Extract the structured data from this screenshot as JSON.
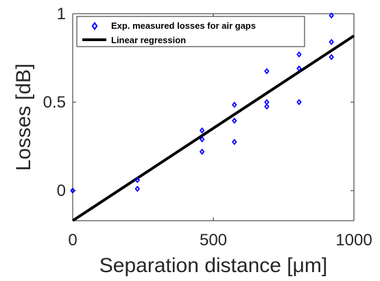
{
  "chart_data": {
    "type": "scatter",
    "xlabel": "Separation distance [μm]",
    "ylabel": "Losses [dB]",
    "xlim": [
      0,
      1000
    ],
    "ylim": [
      -0.17,
      1
    ],
    "xticks": [
      0,
      500,
      1000
    ],
    "yticks": [
      0,
      0.5,
      1
    ],
    "xtick_labels": [
      "0",
      "500",
      "1000"
    ],
    "ytick_labels": [
      "0",
      "0.5",
      "1"
    ],
    "legend_position": "top",
    "series": [
      {
        "name": "Exp. measured losses for air gaps",
        "type": "scatter",
        "marker": "diamond",
        "color": "#0000ff",
        "points": [
          {
            "x": 0,
            "y": 0.0
          },
          {
            "x": 230,
            "y": 0.06
          },
          {
            "x": 230,
            "y": 0.01
          },
          {
            "x": 460,
            "y": 0.34
          },
          {
            "x": 460,
            "y": 0.29
          },
          {
            "x": 460,
            "y": 0.22
          },
          {
            "x": 575,
            "y": 0.485
          },
          {
            "x": 575,
            "y": 0.395
          },
          {
            "x": 575,
            "y": 0.275
          },
          {
            "x": 690,
            "y": 0.675
          },
          {
            "x": 690,
            "y": 0.5
          },
          {
            "x": 690,
            "y": 0.475
          },
          {
            "x": 805,
            "y": 0.77
          },
          {
            "x": 805,
            "y": 0.69
          },
          {
            "x": 805,
            "y": 0.5
          },
          {
            "x": 920,
            "y": 0.99
          },
          {
            "x": 920,
            "y": 0.84
          },
          {
            "x": 920,
            "y": 0.755
          }
        ]
      },
      {
        "name": "Linear regression",
        "type": "line",
        "color": "#000000",
        "points": [
          {
            "x": 0,
            "y": -0.17
          },
          {
            "x": 1000,
            "y": 0.875
          }
        ]
      }
    ]
  }
}
